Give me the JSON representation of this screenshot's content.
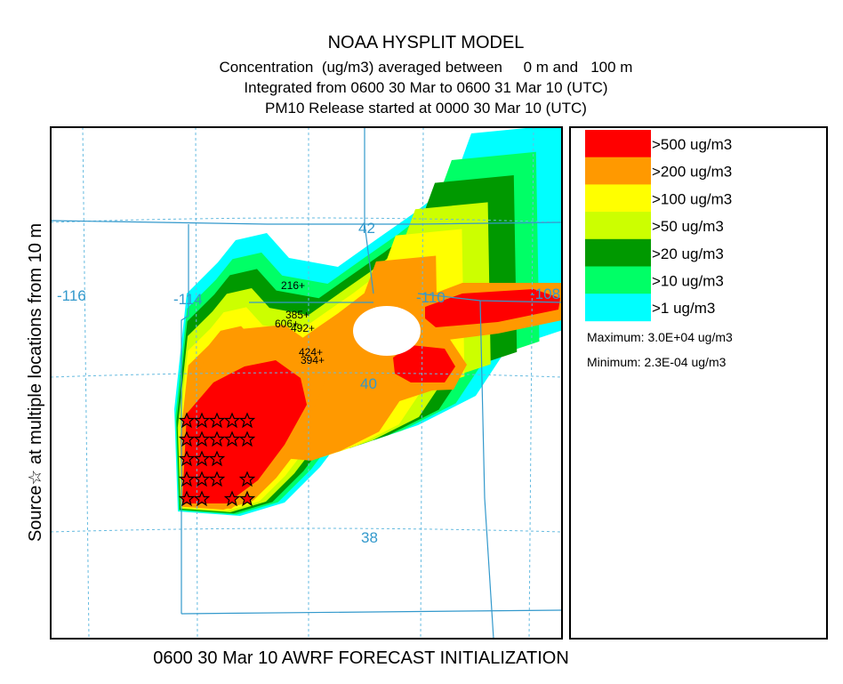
{
  "header": {
    "title": "NOAA HYSPLIT MODEL",
    "lines": [
      "Concentration  (ug/m3) averaged between     0 m and   100 m",
      "Integrated from 0600 30 Mar to 0600 31 Mar 10 (UTC)",
      "PM10 Release started at 0000 30 Mar 10 (UTC)"
    ]
  },
  "side_label": "Source☆ at multiple locations from 10 m",
  "footer": "0600 30 Mar 10 AWRF FORECAST INITIALIZATION",
  "legend": {
    "items": [
      {
        "label": ">500 ug/m3",
        "color": "#ff0000"
      },
      {
        "label": ">200 ug/m3",
        "color": "#ff9900"
      },
      {
        "label": ">100 ug/m3",
        "color": "#ffff00"
      },
      {
        "label": ">50 ug/m3",
        "color": "#ccff00"
      },
      {
        "label": ">20 ug/m3",
        "color": "#009900"
      },
      {
        "label": ">10 ug/m3",
        "color": "#00ff66"
      },
      {
        "label": ">1 ug/m3",
        "color": "#00ffff"
      }
    ],
    "maximum": "Maximum: 3.0E+04 ug/m3",
    "minimum": "Minimum: 2.3E-04 ug/m3"
  },
  "map": {
    "longitude_labels": [
      "-116",
      "-114",
      "-110",
      "-108"
    ],
    "latitude_labels": [
      "42",
      "40",
      "38"
    ],
    "point_labels": [
      "216+",
      "385+",
      "606+",
      "492+",
      "424+",
      "394+"
    ]
  }
}
